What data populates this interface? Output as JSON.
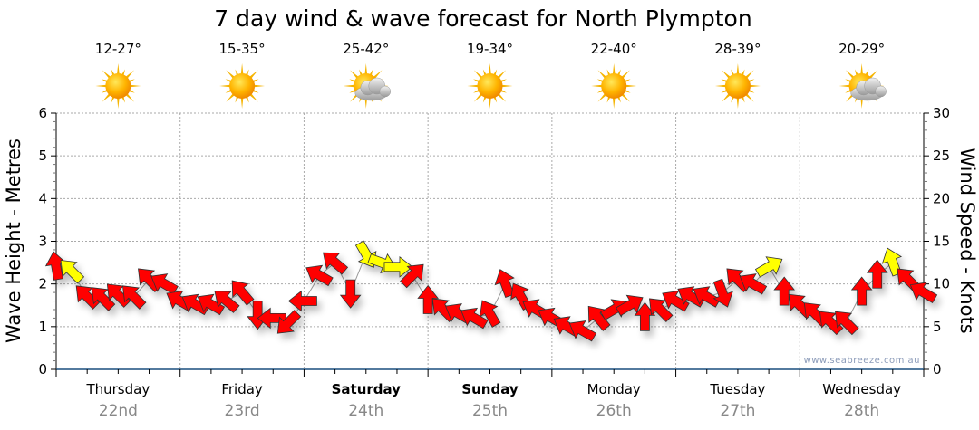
{
  "chart_data": {
    "type": "scatter",
    "title": "7 day wind & wave forecast for North Plympton",
    "ylabel_left": "Wave Height - Metres",
    "ylabel_right": "Wind Speed - Knots",
    "ylim_left": [
      0,
      6
    ],
    "ylim_right": [
      0,
      30
    ],
    "yticks_left": [
      "0",
      "1",
      "2",
      "3",
      "4",
      "5",
      "6"
    ],
    "yticks_right": [
      "0",
      "5",
      "10",
      "15",
      "20",
      "25",
      "30"
    ],
    "grid": true,
    "watermark": "www.seabreeze.com.au",
    "days": [
      {
        "name": "Thursday",
        "date": "22nd",
        "temp": "12-27°",
        "weather": "sunny",
        "bold": false
      },
      {
        "name": "Friday",
        "date": "23rd",
        "temp": "15-35°",
        "weather": "sunny",
        "bold": false
      },
      {
        "name": "Saturday",
        "date": "24th",
        "temp": "25-42°",
        "weather": "partly-cloudy",
        "bold": true
      },
      {
        "name": "Sunday",
        "date": "25th",
        "temp": "19-34°",
        "weather": "sunny",
        "bold": true
      },
      {
        "name": "Monday",
        "date": "26th",
        "temp": "22-40°",
        "weather": "sunny",
        "bold": false
      },
      {
        "name": "Tuesday",
        "date": "27th",
        "temp": "28-39°",
        "weather": "sunny",
        "bold": false
      },
      {
        "name": "Wednesday",
        "date": "28th",
        "temp": "20-29°",
        "weather": "partly-cloudy",
        "bold": false
      }
    ],
    "wind_series": {
      "x_unit": "hours from Thursday 00:00",
      "colors": {
        "normal": "#ff0000",
        "strong": "#ffff00"
      },
      "points": [
        {
          "h": 0,
          "kn": 12,
          "dir": 350,
          "c": "normal"
        },
        {
          "h": 3,
          "kn": 11.5,
          "dir": 315,
          "c": "strong"
        },
        {
          "h": 6,
          "kn": 8.5,
          "dir": 315,
          "c": "normal"
        },
        {
          "h": 9,
          "kn": 8.3,
          "dir": 315,
          "c": "normal"
        },
        {
          "h": 12,
          "kn": 8.7,
          "dir": 315,
          "c": "normal"
        },
        {
          "h": 15,
          "kn": 8.5,
          "dir": 315,
          "c": "normal"
        },
        {
          "h": 18,
          "kn": 10.5,
          "dir": 315,
          "c": "normal"
        },
        {
          "h": 21,
          "kn": 10,
          "dir": 300,
          "c": "normal"
        },
        {
          "h": 24,
          "kn": 8,
          "dir": 300,
          "c": "normal"
        },
        {
          "h": 27,
          "kn": 7.6,
          "dir": 300,
          "c": "normal"
        },
        {
          "h": 30,
          "kn": 7.6,
          "dir": 300,
          "c": "normal"
        },
        {
          "h": 33,
          "kn": 8,
          "dir": 310,
          "c": "normal"
        },
        {
          "h": 36,
          "kn": 9,
          "dir": 320,
          "c": "normal"
        },
        {
          "h": 39,
          "kn": 6.5,
          "dir": 180,
          "c": "normal"
        },
        {
          "h": 42,
          "kn": 6,
          "dir": 270,
          "c": "normal"
        },
        {
          "h": 45,
          "kn": 5.5,
          "dir": 225,
          "c": "normal"
        },
        {
          "h": 48,
          "kn": 8,
          "dir": 270,
          "c": "normal"
        },
        {
          "h": 51,
          "kn": 11,
          "dir": 300,
          "c": "normal"
        },
        {
          "h": 54,
          "kn": 12.5,
          "dir": 310,
          "c": "normal"
        },
        {
          "h": 57,
          "kn": 9,
          "dir": 180,
          "c": "normal"
        },
        {
          "h": 60,
          "kn": 13.5,
          "dir": 150,
          "c": "strong"
        },
        {
          "h": 63,
          "kn": 12.5,
          "dir": 110,
          "c": "strong"
        },
        {
          "h": 66,
          "kn": 12,
          "dir": 90,
          "c": "strong"
        },
        {
          "h": 69,
          "kn": 11,
          "dir": 45,
          "c": "normal"
        },
        {
          "h": 72,
          "kn": 8,
          "dir": 0,
          "c": "normal"
        },
        {
          "h": 75,
          "kn": 7,
          "dir": 315,
          "c": "normal"
        },
        {
          "h": 78,
          "kn": 6.5,
          "dir": 300,
          "c": "normal"
        },
        {
          "h": 81,
          "kn": 6,
          "dir": 300,
          "c": "normal"
        },
        {
          "h": 84,
          "kn": 6.5,
          "dir": 330,
          "c": "normal"
        },
        {
          "h": 87,
          "kn": 10,
          "dir": 340,
          "c": "normal"
        },
        {
          "h": 90,
          "kn": 8.5,
          "dir": 330,
          "c": "normal"
        },
        {
          "h": 93,
          "kn": 7,
          "dir": 300,
          "c": "normal"
        },
        {
          "h": 96,
          "kn": 6,
          "dir": 300,
          "c": "normal"
        },
        {
          "h": 99,
          "kn": 5,
          "dir": 300,
          "c": "normal"
        },
        {
          "h": 102,
          "kn": 4.5,
          "dir": 300,
          "c": "normal"
        },
        {
          "h": 105,
          "kn": 6,
          "dir": 320,
          "c": "normal"
        },
        {
          "h": 108,
          "kn": 7,
          "dir": 60,
          "c": "normal"
        },
        {
          "h": 111,
          "kn": 7.5,
          "dir": 60,
          "c": "normal"
        },
        {
          "h": 114,
          "kn": 6,
          "dir": 0,
          "c": "normal"
        },
        {
          "h": 117,
          "kn": 7,
          "dir": 315,
          "c": "normal"
        },
        {
          "h": 120,
          "kn": 8,
          "dir": 300,
          "c": "normal"
        },
        {
          "h": 123,
          "kn": 8.5,
          "dir": 300,
          "c": "normal"
        },
        {
          "h": 126,
          "kn": 8.5,
          "dir": 300,
          "c": "normal"
        },
        {
          "h": 129,
          "kn": 9,
          "dir": 160,
          "c": "normal"
        },
        {
          "h": 132,
          "kn": 10.5,
          "dir": 315,
          "c": "normal"
        },
        {
          "h": 135,
          "kn": 10,
          "dir": 300,
          "c": "normal"
        },
        {
          "h": 138,
          "kn": 12,
          "dir": 60,
          "c": "strong"
        },
        {
          "h": 141,
          "kn": 9,
          "dir": 0,
          "c": "normal"
        },
        {
          "h": 144,
          "kn": 7.5,
          "dir": 315,
          "c": "normal"
        },
        {
          "h": 147,
          "kn": 6.5,
          "dir": 315,
          "c": "normal"
        },
        {
          "h": 150,
          "kn": 5.5,
          "dir": 315,
          "c": "normal"
        },
        {
          "h": 153,
          "kn": 5.5,
          "dir": 315,
          "c": "normal"
        },
        {
          "h": 156,
          "kn": 9,
          "dir": 0,
          "c": "normal"
        },
        {
          "h": 159,
          "kn": 11,
          "dir": 0,
          "c": "normal"
        },
        {
          "h": 162,
          "kn": 12.5,
          "dir": 340,
          "c": "strong"
        },
        {
          "h": 165,
          "kn": 10.5,
          "dir": 315,
          "c": "normal"
        },
        {
          "h": 168,
          "kn": 9,
          "dir": 300,
          "c": "normal"
        }
      ]
    }
  }
}
